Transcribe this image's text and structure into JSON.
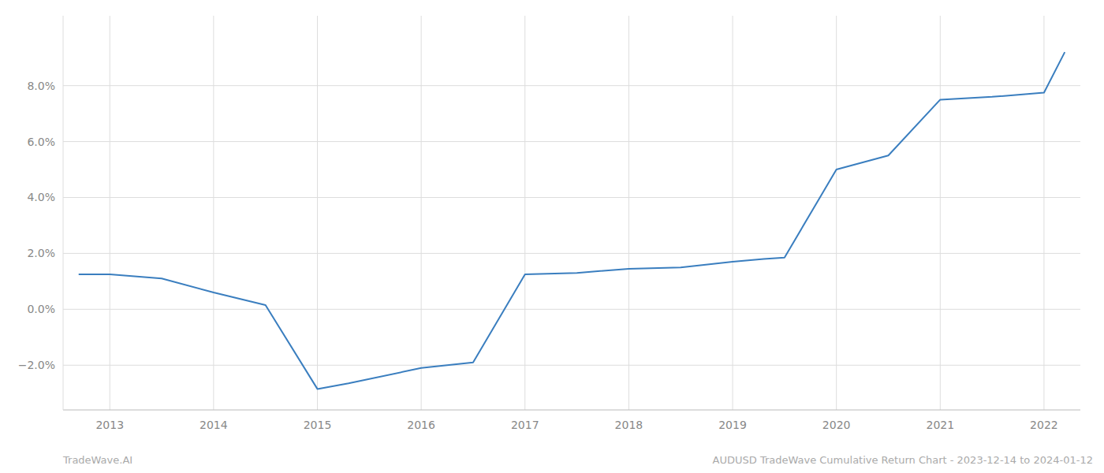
{
  "chart_data": {
    "type": "line",
    "x": [
      2012.7,
      2013.0,
      2013.5,
      2014.0,
      2014.5,
      2015.0,
      2015.3,
      2016.0,
      2016.5,
      2017.0,
      2017.5,
      2018.0,
      2018.5,
      2019.0,
      2019.3,
      2019.5,
      2020.0,
      2020.5,
      2021.0,
      2021.5,
      2022.0,
      2022.2
    ],
    "values": [
      1.25,
      1.25,
      1.1,
      0.6,
      0.15,
      -2.85,
      -2.65,
      -2.1,
      -1.9,
      1.25,
      1.3,
      1.45,
      1.5,
      1.7,
      1.8,
      1.85,
      5.0,
      5.5,
      7.5,
      7.6,
      7.75,
      9.2
    ],
    "color": "#3a7ebf",
    "xlim": [
      2012.55,
      2022.35
    ],
    "xticks": [
      2013,
      2014,
      2015,
      2016,
      2017,
      2018,
      2019,
      2020,
      2021,
      2022
    ],
    "ylim": [
      -3.6,
      10.5
    ],
    "yticks": [
      {
        "value": -2.0,
        "label": "−2.0%"
      },
      {
        "value": 0.0,
        "label": "0.0%"
      },
      {
        "value": 2.0,
        "label": "2.0%"
      },
      {
        "value": 4.0,
        "label": "4.0%"
      },
      {
        "value": 6.0,
        "label": "6.0%"
      },
      {
        "value": 8.0,
        "label": "8.0%"
      }
    ],
    "grid": true,
    "annotations": [
      "TradeWave.AI",
      "AUDUSD TradeWave Cumulative Return Chart - 2023-12-14 to 2024-01-12"
    ]
  }
}
